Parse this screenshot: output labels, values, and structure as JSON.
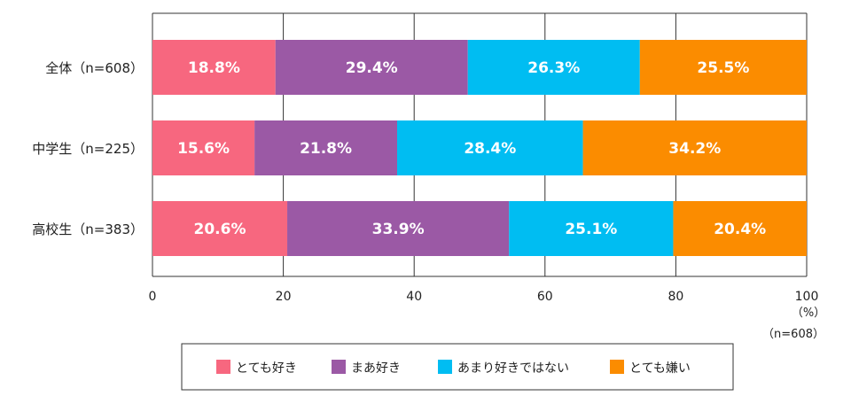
{
  "chart_data": {
    "type": "bar",
    "orientation": "horizontal",
    "stacked": true,
    "categories": [
      "全体（n=608）",
      "中学生（n=225）",
      "高校生（n=383）"
    ],
    "series": [
      {
        "name": "とても好き",
        "color": "#f7677f",
        "values": [
          18.8,
          15.6,
          20.6
        ],
        "labels": [
          "18.8%",
          "15.6%",
          "20.6%"
        ]
      },
      {
        "name": "まあ好き",
        "color": "#9b59a5",
        "values": [
          29.4,
          21.8,
          33.9
        ],
        "labels": [
          "29.4%",
          "21.8%",
          "33.9%"
        ]
      },
      {
        "name": "あまり好きではない",
        "color": "#00bdf2",
        "values": [
          26.3,
          28.4,
          25.1
        ],
        "labels": [
          "26.3%",
          "28.4%",
          "25.1%"
        ]
      },
      {
        "name": "とても嫌い",
        "color": "#fb8c00",
        "values": [
          25.5,
          34.2,
          20.4
        ],
        "labels": [
          "25.5%",
          "34.2%",
          "20.4%"
        ]
      }
    ],
    "xlim": [
      0,
      100
    ],
    "xticks": [
      0,
      20,
      40,
      60,
      80,
      100
    ],
    "unit_label": "（%）",
    "note": "（n=608）",
    "grid": true,
    "legend_position": "bottom"
  }
}
